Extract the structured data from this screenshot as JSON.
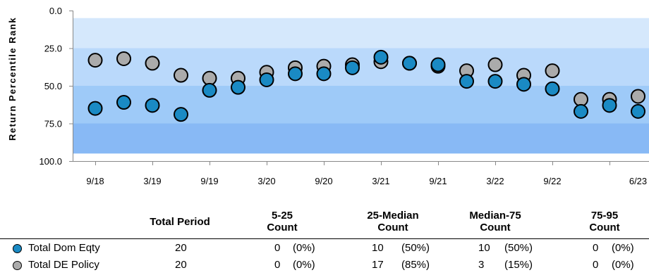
{
  "chart_data": {
    "type": "scatter",
    "ylabel": "Return Percentile Rank",
    "ylim": [
      0,
      100
    ],
    "y_inverted": true,
    "y_ticks": [
      "0.0",
      "25.0",
      "50.0",
      "75.0",
      "100.0"
    ],
    "y_tick_values": [
      0,
      25,
      50,
      75,
      100
    ],
    "x_ticks": [
      "9/18",
      "3/19",
      "9/19",
      "3/20",
      "9/20",
      "3/21",
      "9/21",
      "3/22",
      "9/22",
      "6/23"
    ],
    "bands": [
      {
        "from": 5,
        "to": 25,
        "color": "#d5e8fc"
      },
      {
        "from": 25,
        "to": 50,
        "color": "#bad9fb"
      },
      {
        "from": 50,
        "to": 75,
        "color": "#9ecaf8"
      },
      {
        "from": 75,
        "to": 95,
        "color": "#88b9f5"
      }
    ],
    "x": [
      "9/18",
      "12/18",
      "3/19",
      "6/19",
      "9/19",
      "12/19",
      "3/20",
      "6/20",
      "9/20",
      "12/20",
      "3/21",
      "6/21",
      "9/21",
      "12/21",
      "3/22",
      "6/22",
      "9/22",
      "12/22",
      "3/23",
      "6/23"
    ],
    "series": [
      {
        "name": "Total Dom Eqty",
        "color": "#1a8ac4",
        "values": [
          65,
          61,
          63,
          69,
          53,
          51,
          46,
          42,
          42,
          38,
          31,
          35,
          36,
          47,
          47,
          49,
          52,
          67,
          63,
          67
        ]
      },
      {
        "name": "Total DE Policy",
        "color": "#ababab",
        "values": [
          33,
          32,
          35,
          43,
          45,
          45,
          41,
          38,
          37,
          36,
          34,
          35,
          37,
          40,
          36,
          43,
          40,
          59,
          59,
          57
        ]
      }
    ]
  },
  "table": {
    "headers": [
      "Total Period",
      "5-25\nCount",
      "25-Median\nCount",
      "Median-75\nCount",
      "75-95\nCount"
    ],
    "rows": [
      {
        "name": "Total Dom Eqty",
        "color": "#1a8ac4",
        "total": "20",
        "c1": "0",
        "p1": "(0%)",
        "c2": "10",
        "p2": "(50%)",
        "c3": "10",
        "p3": "(50%)",
        "c4": "0",
        "p4": "(0%)"
      },
      {
        "name": "Total DE Policy",
        "color": "#ababab",
        "total": "20",
        "c1": "0",
        "p1": "(0%)",
        "c2": "17",
        "p2": "(85%)",
        "c3": "3",
        "p3": "(15%)",
        "c4": "0",
        "p4": "(0%)"
      }
    ]
  }
}
